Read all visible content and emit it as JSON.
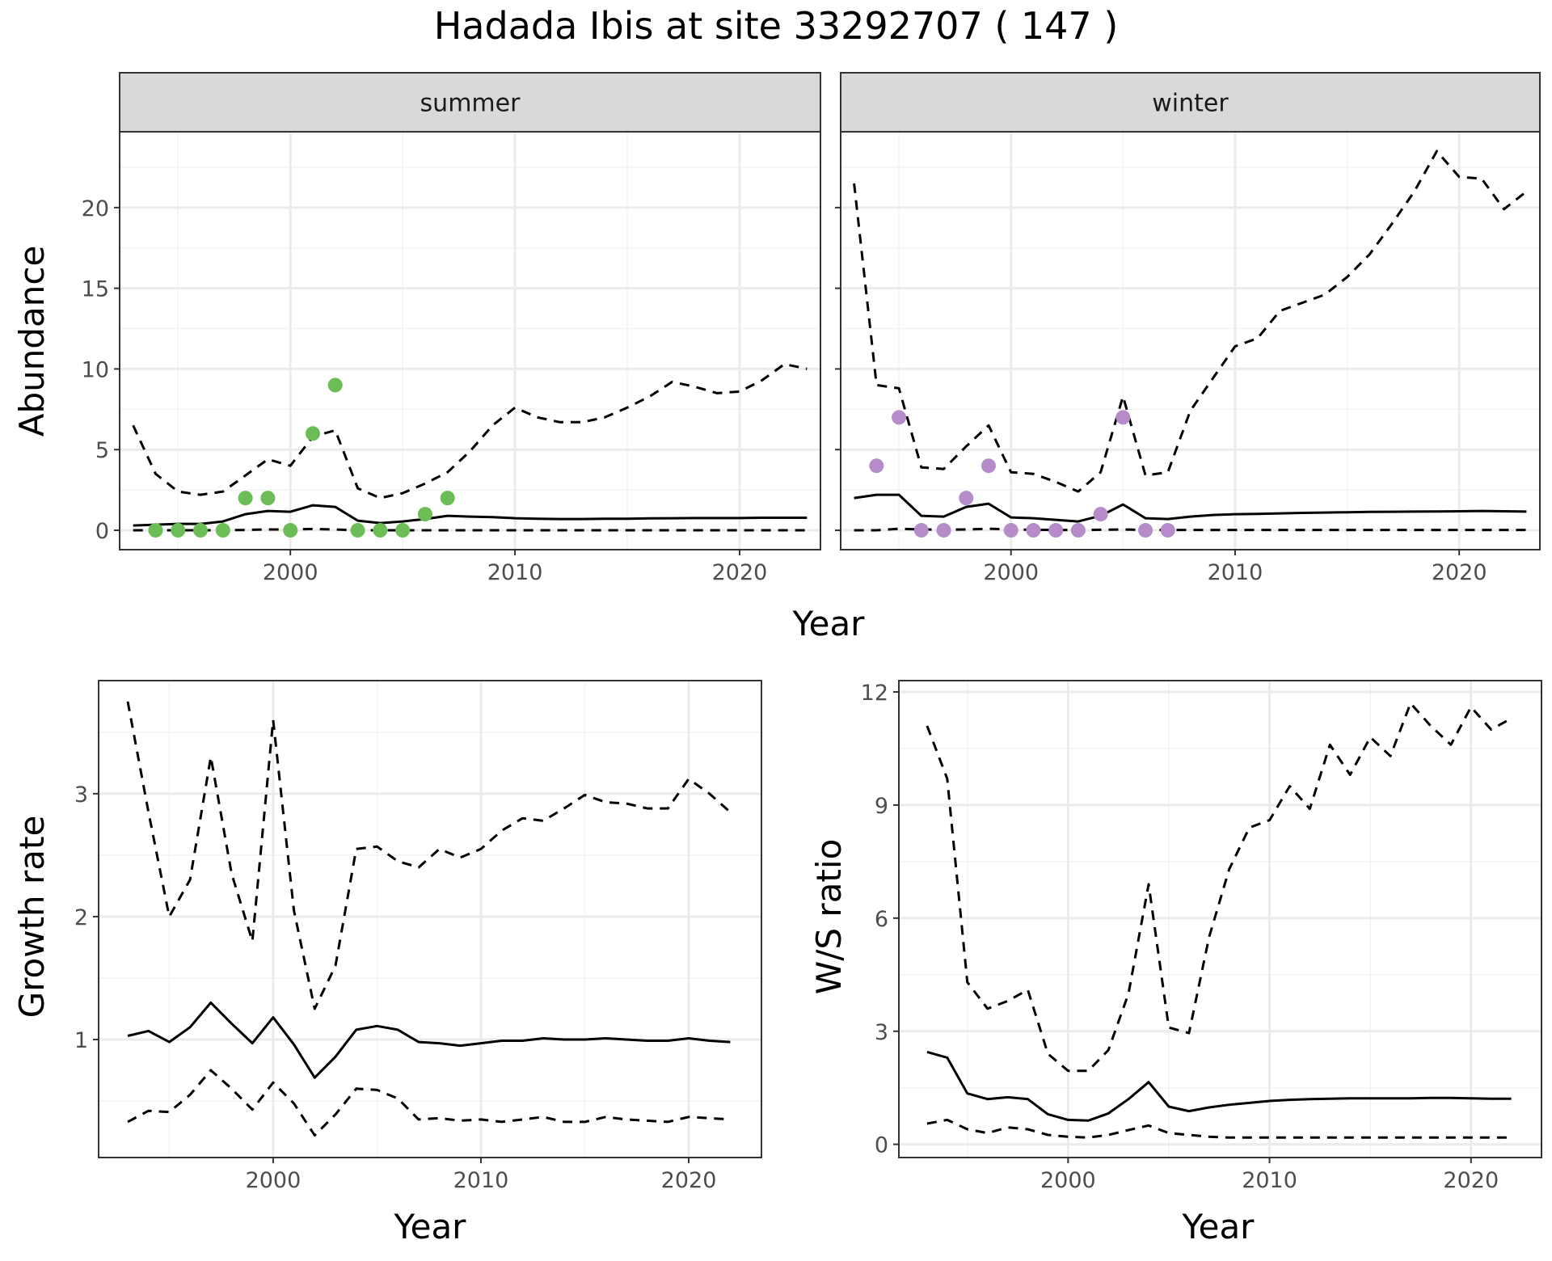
{
  "title": "Hadada Ibis at site 33292707 ( 147 )",
  "colors": {
    "summer_points": "#6dbd57",
    "winter_points": "#b58cc9",
    "line": "#000000",
    "grid_major": "#ebebeb",
    "grid_minor": "#f3f3f3",
    "strip_bg": "#d9d9d9",
    "panel_border": "#333333"
  },
  "chart_data": [
    {
      "type": "line",
      "facet_label": "summer",
      "xlabel": "Year",
      "ylabel": "Abundance",
      "xlim": [
        1992.4,
        2023.6
      ],
      "ylim": [
        -1.2,
        24.7
      ],
      "xticks": [
        2000,
        2010,
        2020
      ],
      "yticks": [
        0,
        5,
        10,
        15,
        20
      ],
      "grid": true,
      "series": [
        {
          "role": "estimate",
          "style": "solid",
          "x": [
            1993,
            1994,
            1995,
            1996,
            1997,
            1998,
            1999,
            2000,
            2001,
            2002,
            2003,
            2004,
            2005,
            2006,
            2007,
            2008,
            2009,
            2010,
            2011,
            2012,
            2013,
            2014,
            2015,
            2016,
            2017,
            2018,
            2019,
            2020,
            2021,
            2022,
            2023
          ],
          "y": [
            0.3,
            0.35,
            0.4,
            0.4,
            0.55,
            1.0,
            1.2,
            1.15,
            1.55,
            1.45,
            0.6,
            0.45,
            0.55,
            0.7,
            0.9,
            0.85,
            0.82,
            0.75,
            0.72,
            0.7,
            0.7,
            0.72,
            0.72,
            0.74,
            0.75,
            0.76,
            0.76,
            0.76,
            0.78,
            0.78,
            0.78
          ]
        },
        {
          "role": "upper",
          "style": "dashed",
          "x": [
            1993,
            1994,
            1995,
            1996,
            1997,
            1998,
            1999,
            2000,
            2001,
            2002,
            2003,
            2004,
            2005,
            2006,
            2007,
            2008,
            2009,
            2010,
            2011,
            2012,
            2013,
            2014,
            2015,
            2016,
            2017,
            2018,
            2019,
            2020,
            2021,
            2022,
            2023
          ],
          "y": [
            6.5,
            3.5,
            2.4,
            2.2,
            2.4,
            3.4,
            4.4,
            4.0,
            5.8,
            6.2,
            2.6,
            2.0,
            2.3,
            2.9,
            3.6,
            4.9,
            6.5,
            7.6,
            7.0,
            6.7,
            6.7,
            7.0,
            7.6,
            8.3,
            9.2,
            8.9,
            8.5,
            8.6,
            9.3,
            10.3,
            10.0
          ]
        },
        {
          "role": "lower",
          "style": "dashed",
          "x": [
            1993,
            1994,
            1995,
            1996,
            1997,
            1998,
            1999,
            2000,
            2001,
            2002,
            2003,
            2004,
            2005,
            2006,
            2007,
            2008,
            2009,
            2010,
            2011,
            2012,
            2013,
            2014,
            2015,
            2016,
            2017,
            2018,
            2019,
            2020,
            2021,
            2022,
            2023
          ],
          "y": [
            0,
            0,
            0,
            0,
            0,
            0.02,
            0.05,
            0.05,
            0.08,
            0.05,
            0,
            0,
            0,
            0,
            0,
            0,
            0,
            0,
            0,
            0,
            0,
            0,
            0,
            0,
            0,
            0,
            0,
            0,
            0,
            0,
            0
          ]
        }
      ],
      "points": {
        "x": [
          1994,
          1995,
          1996,
          1997,
          1998,
          1999,
          2000,
          2001,
          2002,
          2003,
          2004,
          2005,
          2006,
          2007
        ],
        "y": [
          0,
          0,
          0,
          0,
          2,
          2,
          0,
          6,
          9,
          0,
          0,
          0,
          1,
          2
        ]
      }
    },
    {
      "type": "line",
      "facet_label": "winter",
      "xlabel": "Year",
      "ylabel": "",
      "xlim": [
        1992.4,
        2023.6
      ],
      "ylim": [
        -1.2,
        24.7
      ],
      "xticks": [
        2000,
        2010,
        2020
      ],
      "yticks": [
        0,
        5,
        10,
        15,
        20
      ],
      "grid": true,
      "series": [
        {
          "role": "estimate",
          "style": "solid",
          "x": [
            1993,
            1994,
            1995,
            1996,
            1997,
            1998,
            1999,
            2000,
            2001,
            2002,
            2003,
            2004,
            2005,
            2006,
            2007,
            2008,
            2009,
            2010,
            2011,
            2012,
            2013,
            2014,
            2015,
            2016,
            2017,
            2018,
            2019,
            2020,
            2021,
            2022,
            2023
          ],
          "y": [
            2.0,
            2.2,
            2.2,
            0.9,
            0.85,
            1.45,
            1.65,
            0.8,
            0.75,
            0.65,
            0.55,
            0.9,
            1.6,
            0.75,
            0.7,
            0.85,
            0.95,
            1.0,
            1.02,
            1.05,
            1.08,
            1.1,
            1.12,
            1.14,
            1.15,
            1.16,
            1.17,
            1.18,
            1.2,
            1.18,
            1.16
          ]
        },
        {
          "role": "upper",
          "style": "dashed",
          "x": [
            1993,
            1994,
            1995,
            1996,
            1997,
            1998,
            1999,
            2000,
            2001,
            2002,
            2003,
            2004,
            2005,
            2006,
            2007,
            2008,
            2009,
            2010,
            2011,
            2012,
            2013,
            2014,
            2015,
            2016,
            2017,
            2018,
            2019,
            2020,
            2021,
            2022,
            2023
          ],
          "y": [
            21.5,
            9.0,
            8.8,
            3.9,
            3.8,
            5.2,
            6.5,
            3.6,
            3.5,
            3.0,
            2.4,
            3.6,
            8.3,
            3.4,
            3.6,
            7.4,
            9.4,
            11.4,
            11.9,
            13.6,
            14.1,
            14.6,
            15.7,
            17.1,
            19.0,
            21.0,
            23.5,
            21.9,
            21.8,
            19.9,
            21.0
          ]
        },
        {
          "role": "lower",
          "style": "dashed",
          "x": [
            1993,
            1994,
            1995,
            1996,
            1997,
            1998,
            1999,
            2000,
            2001,
            2002,
            2003,
            2004,
            2005,
            2006,
            2007,
            2008,
            2009,
            2010,
            2011,
            2012,
            2013,
            2014,
            2015,
            2016,
            2017,
            2018,
            2019,
            2020,
            2021,
            2022,
            2023
          ],
          "y": [
            0,
            0,
            0.1,
            0.05,
            0.03,
            0.05,
            0.1,
            0.05,
            0.03,
            0.02,
            0.02,
            0.03,
            0.05,
            0.02,
            0.02,
            0.02,
            0.02,
            0.02,
            0.02,
            0.02,
            0.02,
            0.02,
            0.02,
            0.02,
            0.02,
            0.02,
            0.02,
            0.02,
            0.02,
            0.02,
            0.02
          ]
        }
      ],
      "points": {
        "x": [
          1994,
          1995,
          1996,
          1997,
          1998,
          1999,
          2000,
          2001,
          2002,
          2003,
          2004,
          2005,
          2006,
          2007
        ],
        "y": [
          4,
          7,
          0,
          0,
          2,
          4,
          0,
          0,
          0,
          0,
          1,
          7,
          0,
          0
        ]
      }
    },
    {
      "type": "line",
      "facet_label": "",
      "xlabel": "Year",
      "ylabel": "Growth rate",
      "xlim": [
        1991.6,
        2023.5
      ],
      "ylim": [
        0.04,
        3.92
      ],
      "xticks": [
        2000,
        2010,
        2020
      ],
      "yticks": [
        1,
        2,
        3
      ],
      "grid": true,
      "series": [
        {
          "role": "estimate",
          "style": "solid",
          "x": [
            1993,
            1994,
            1995,
            1996,
            1997,
            1998,
            1999,
            2000,
            2001,
            2002,
            2003,
            2004,
            2005,
            2006,
            2007,
            2008,
            2009,
            2010,
            2011,
            2012,
            2013,
            2014,
            2015,
            2016,
            2017,
            2018,
            2019,
            2020,
            2021,
            2022
          ],
          "y": [
            1.03,
            1.07,
            0.98,
            1.1,
            1.3,
            1.13,
            0.97,
            1.18,
            0.96,
            0.69,
            0.86,
            1.08,
            1.11,
            1.08,
            0.98,
            0.97,
            0.95,
            0.97,
            0.99,
            0.99,
            1.01,
            1.0,
            1.0,
            1.01,
            1.0,
            0.99,
            0.99,
            1.01,
            0.99,
            0.98
          ]
        },
        {
          "role": "upper",
          "style": "dashed",
          "x": [
            1993,
            1994,
            1995,
            1996,
            1997,
            1998,
            1999,
            2000,
            2001,
            2002,
            2003,
            2004,
            2005,
            2006,
            2007,
            2008,
            2009,
            2010,
            2011,
            2012,
            2013,
            2014,
            2015,
            2016,
            2017,
            2018,
            2019,
            2020,
            2021,
            2022
          ],
          "y": [
            3.75,
            2.85,
            2.0,
            2.3,
            3.3,
            2.35,
            1.8,
            3.6,
            2.05,
            1.25,
            1.6,
            2.55,
            2.57,
            2.45,
            2.4,
            2.55,
            2.48,
            2.55,
            2.7,
            2.8,
            2.78,
            2.88,
            2.99,
            2.93,
            2.92,
            2.88,
            2.88,
            3.12,
            3.0,
            2.85
          ]
        },
        {
          "role": "lower",
          "style": "dashed",
          "x": [
            1993,
            1994,
            1995,
            1996,
            1997,
            1998,
            1999,
            2000,
            2001,
            2002,
            2003,
            2004,
            2005,
            2006,
            2007,
            2008,
            2009,
            2010,
            2011,
            2012,
            2013,
            2014,
            2015,
            2016,
            2017,
            2018,
            2019,
            2020,
            2021,
            2022
          ],
          "y": [
            0.33,
            0.42,
            0.41,
            0.55,
            0.75,
            0.6,
            0.43,
            0.65,
            0.48,
            0.22,
            0.39,
            0.6,
            0.59,
            0.52,
            0.35,
            0.36,
            0.34,
            0.35,
            0.33,
            0.35,
            0.37,
            0.33,
            0.33,
            0.37,
            0.35,
            0.34,
            0.33,
            0.37,
            0.36,
            0.35
          ]
        }
      ]
    },
    {
      "type": "line",
      "facet_label": "",
      "xlabel": "Year",
      "ylabel": "W/S ratio",
      "xlim": [
        1991.6,
        2023.5
      ],
      "ylim": [
        -0.35,
        12.3
      ],
      "xticks": [
        2000,
        2010,
        2020
      ],
      "yticks": [
        0,
        3,
        6,
        9,
        12
      ],
      "grid": true,
      "series": [
        {
          "role": "estimate",
          "style": "solid",
          "x": [
            1993,
            1994,
            1995,
            1996,
            1997,
            1998,
            1999,
            2000,
            2001,
            2002,
            2003,
            2004,
            2005,
            2006,
            2007,
            2008,
            2009,
            2010,
            2011,
            2012,
            2013,
            2014,
            2015,
            2016,
            2017,
            2018,
            2019,
            2020,
            2021,
            2022
          ],
          "y": [
            2.45,
            2.3,
            1.35,
            1.2,
            1.25,
            1.2,
            0.8,
            0.65,
            0.63,
            0.82,
            1.2,
            1.65,
            1.0,
            0.88,
            0.98,
            1.05,
            1.1,
            1.15,
            1.18,
            1.2,
            1.21,
            1.22,
            1.22,
            1.22,
            1.22,
            1.23,
            1.23,
            1.22,
            1.21,
            1.21
          ]
        },
        {
          "role": "upper",
          "style": "dashed",
          "x": [
            1993,
            1994,
            1995,
            1996,
            1997,
            1998,
            1999,
            2000,
            2001,
            2002,
            2003,
            2004,
            2005,
            2006,
            2007,
            2008,
            2009,
            2010,
            2011,
            2012,
            2013,
            2014,
            2015,
            2016,
            2017,
            2018,
            2019,
            2020,
            2021,
            2022
          ],
          "y": [
            11.1,
            9.7,
            4.3,
            3.6,
            3.8,
            4.1,
            2.4,
            1.95,
            1.95,
            2.5,
            4.0,
            6.9,
            3.1,
            2.95,
            5.5,
            7.3,
            8.4,
            8.6,
            9.5,
            8.9,
            10.6,
            9.8,
            10.8,
            10.3,
            11.7,
            11.1,
            10.6,
            11.6,
            11.0,
            11.3
          ]
        },
        {
          "role": "lower",
          "style": "dashed",
          "x": [
            1993,
            1994,
            1995,
            1996,
            1997,
            1998,
            1999,
            2000,
            2001,
            2002,
            2003,
            2004,
            2005,
            2006,
            2007,
            2008,
            2009,
            2010,
            2011,
            2012,
            2013,
            2014,
            2015,
            2016,
            2017,
            2018,
            2019,
            2020,
            2021,
            2022
          ],
          "y": [
            0.55,
            0.65,
            0.4,
            0.3,
            0.45,
            0.4,
            0.25,
            0.2,
            0.18,
            0.25,
            0.38,
            0.5,
            0.3,
            0.25,
            0.2,
            0.18,
            0.18,
            0.18,
            0.18,
            0.18,
            0.18,
            0.18,
            0.18,
            0.18,
            0.18,
            0.18,
            0.18,
            0.18,
            0.18,
            0.18
          ]
        }
      ]
    }
  ]
}
